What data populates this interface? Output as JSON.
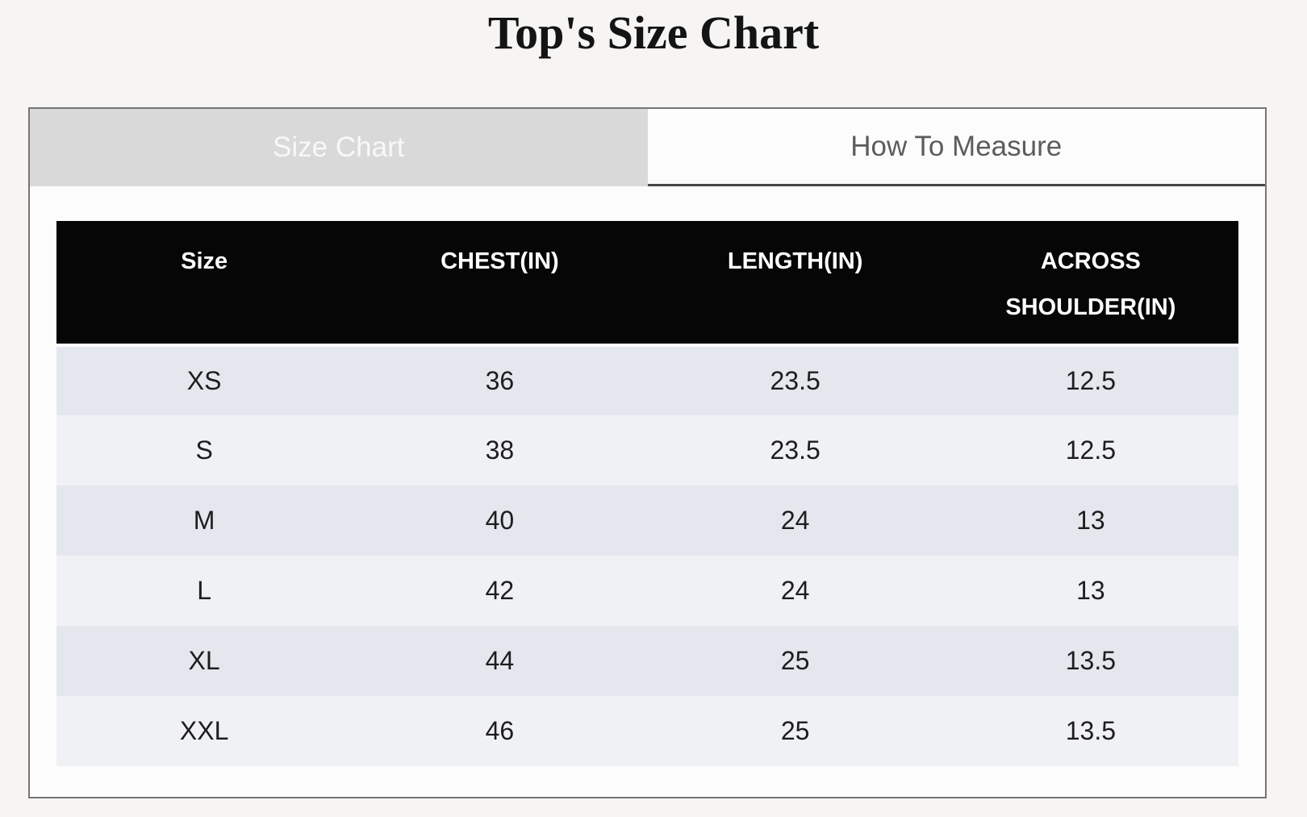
{
  "page": {
    "title": "Top's Size Chart"
  },
  "tabs": {
    "size_chart": {
      "label": "Size Chart",
      "active": true
    },
    "how_to_measure": {
      "label": "How To Measure",
      "active": false
    }
  },
  "size_table": {
    "headers": [
      "Size",
      "CHEST(IN)",
      "LENGTH(IN)",
      "ACROSS SHOULDER(IN)"
    ],
    "rows": [
      [
        "XS",
        "36",
        "23.5",
        "12.5"
      ],
      [
        "S",
        "38",
        "23.5",
        "12.5"
      ],
      [
        "M",
        "40",
        "24",
        "13"
      ],
      [
        "L",
        "42",
        "24",
        "13"
      ],
      [
        "XL",
        "44",
        "25",
        "13.5"
      ],
      [
        "XXL",
        "46",
        "25",
        "13.5"
      ]
    ]
  },
  "colors": {
    "page_background": "#f6f5f3",
    "panel_background": "#fcfcfc",
    "panel_border": "#757575",
    "tab_active_background": "#d9d9d9",
    "tab_active_text": "#f8f8f8",
    "tab_inactive_text": "#5c5c5c",
    "header_background": "#060606",
    "header_text": "#ffffff",
    "row_odd_background": "#e4e7ed",
    "row_even_background": "#f0f1f5",
    "row_text": "#1d1d1d"
  }
}
